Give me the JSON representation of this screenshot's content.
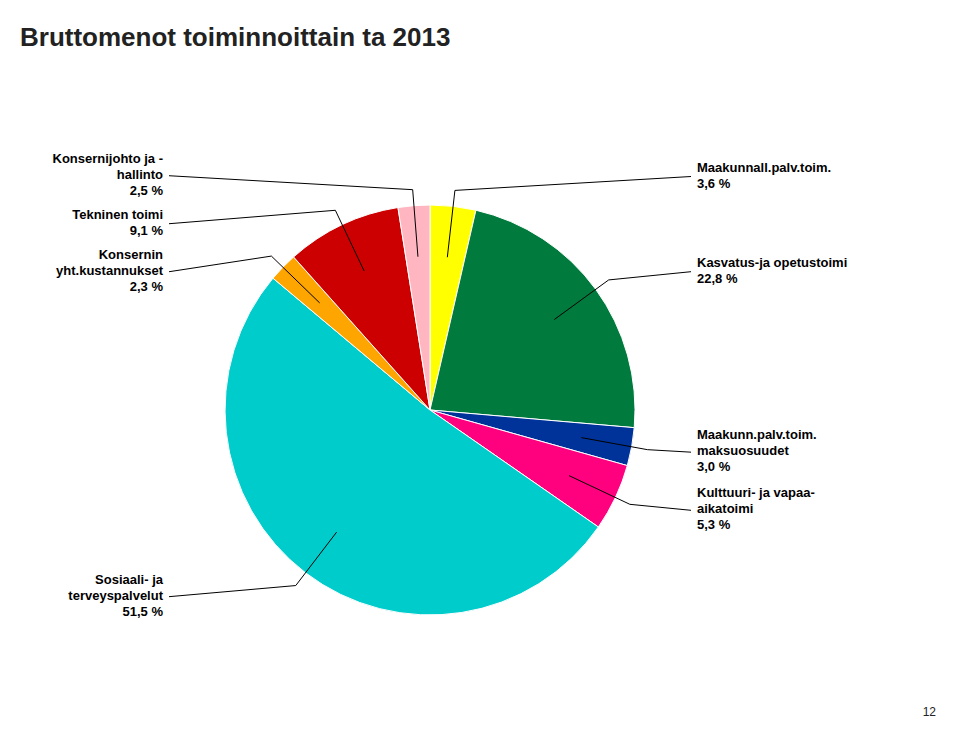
{
  "chart_data": {
    "type": "pie",
    "title": "Bruttomenot toiminnoittain ta 2013",
    "categories": [
      "Maakunnall.palv.toim.\n3,6 %",
      "Kasvatus-ja opetustoimi\n22,8 %",
      "Maakunn.palv.toim.\nmaksuosuudet\n3,0 %",
      "Kulttuuri- ja vapaa-\naikatoimi\n5,3 %",
      "Sosiaali- ja\nterveyspalvelut\n51,5 %",
      "Konsernin\nyht.kustannukset\n2,3 %",
      "Tekninen toimi\n9,1 %",
      "Konsernijohto ja -\nhallinto\n2,5 %"
    ],
    "values": [
      3.6,
      22.8,
      3.0,
      5.3,
      51.5,
      2.3,
      9.1,
      2.5
    ],
    "colors": [
      "#FFFF00",
      "#007A3D",
      "#003399",
      "#FF007F",
      "#00CCCC",
      "#FFA500",
      "#CC0000",
      "#FFB6C1"
    ],
    "annotations": [
      "12"
    ]
  }
}
